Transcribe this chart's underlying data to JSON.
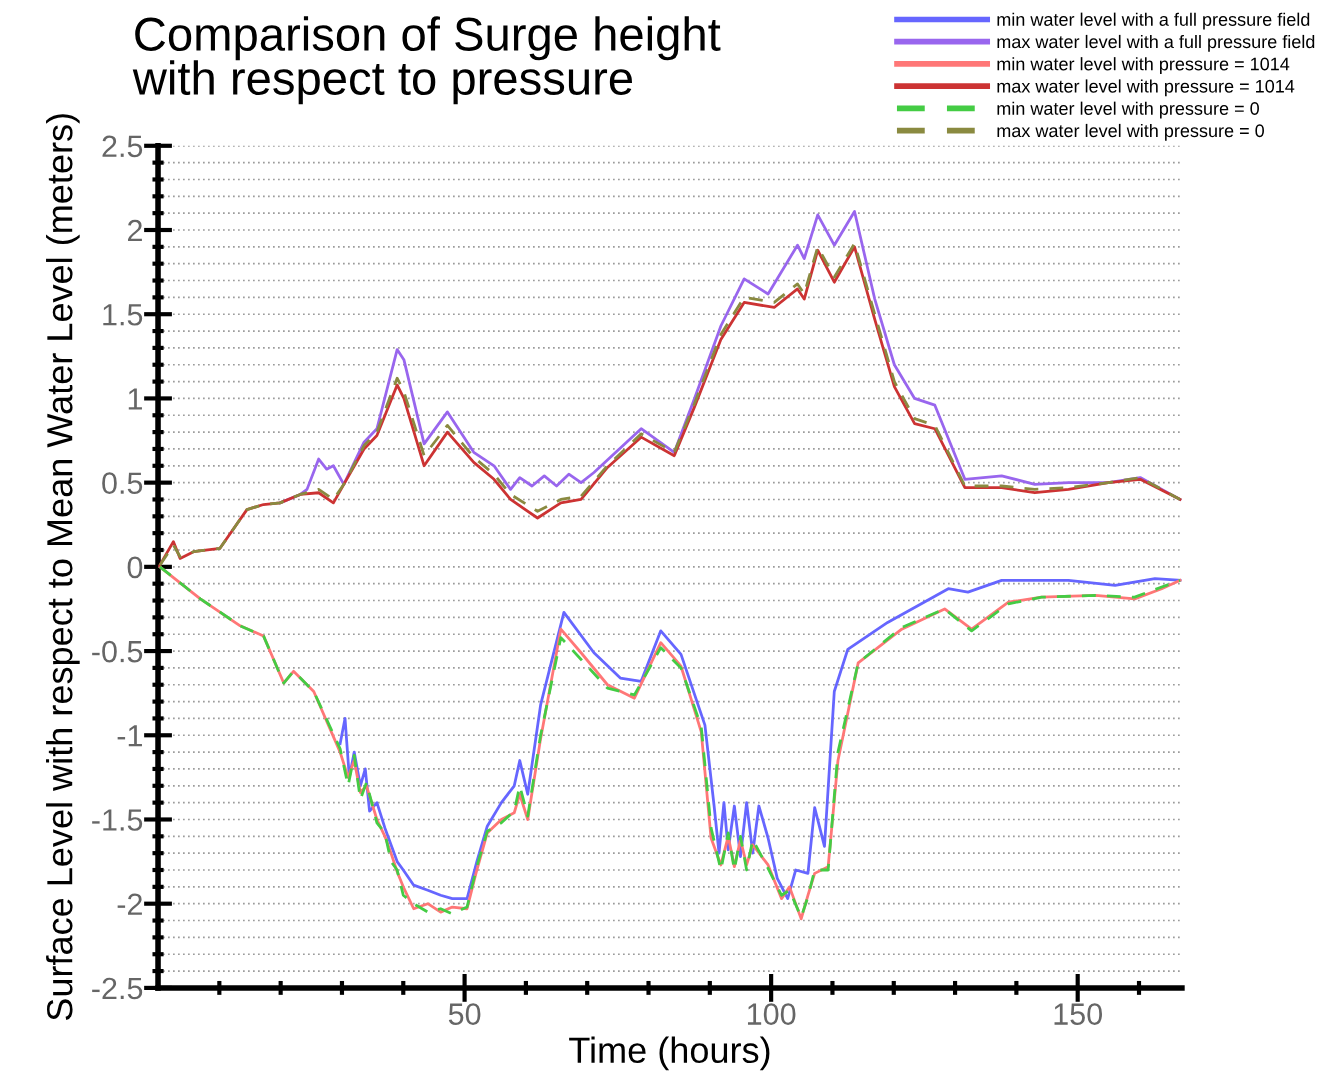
{
  "chart_data": {
    "type": "line",
    "title": "Comparison of Surge height\nwith respect to pressure",
    "xlabel": "Time (hours)",
    "ylabel": "Surface Level with respect to Mean Water Level (meters)",
    "xlim": [
      0,
      167
    ],
    "ylim": [
      -2.5,
      2.5
    ],
    "xticks": [
      {
        "value": 10,
        "label": null
      },
      {
        "value": 20,
        "label": null
      },
      {
        "value": 30,
        "label": null
      },
      {
        "value": 40,
        "label": null
      },
      50,
      {
        "value": 60,
        "label": null
      },
      {
        "value": 70,
        "label": null
      },
      {
        "value": 80,
        "label": null
      },
      {
        "value": 90,
        "label": null
      },
      100,
      {
        "value": 110,
        "label": null
      },
      {
        "value": 120,
        "label": null
      },
      {
        "value": 130,
        "label": null
      },
      {
        "value": 140,
        "label": null
      },
      150,
      {
        "value": 160,
        "label": null
      }
    ],
    "yticks": [
      -2.5,
      {
        "value": -2.4,
        "label": null
      },
      {
        "value": -2.3,
        "label": null
      },
      {
        "value": -2.2,
        "label": null
      },
      {
        "value": -2.1,
        "label": null
      },
      -2,
      {
        "value": -1.9,
        "label": null
      },
      {
        "value": -1.8,
        "label": null
      },
      {
        "value": -1.7,
        "label": null
      },
      {
        "value": -1.6,
        "label": null
      },
      -1.5,
      {
        "value": -1.4,
        "label": null
      },
      {
        "value": -1.3,
        "label": null
      },
      {
        "value": -1.2,
        "label": null
      },
      {
        "value": -1.1,
        "label": null
      },
      -1,
      {
        "value": -0.9,
        "label": null
      },
      {
        "value": -0.8,
        "label": null
      },
      {
        "value": -0.7,
        "label": null
      },
      {
        "value": -0.6,
        "label": null
      },
      -0.5,
      {
        "value": -0.4,
        "label": null
      },
      {
        "value": -0.3,
        "label": null
      },
      {
        "value": -0.2,
        "label": null
      },
      {
        "value": -0.1,
        "label": null
      },
      0,
      {
        "value": 0.1,
        "label": null
      },
      {
        "value": 0.2,
        "label": null
      },
      {
        "value": 0.3,
        "label": null
      },
      {
        "value": 0.4,
        "label": null
      },
      0.5,
      {
        "value": 0.6,
        "label": null
      },
      {
        "value": 0.7,
        "label": null
      },
      {
        "value": 0.8,
        "label": null
      },
      {
        "value": 0.9,
        "label": null
      },
      1,
      {
        "value": 1.1,
        "label": null
      },
      {
        "value": 1.2,
        "label": null
      },
      {
        "value": 1.3,
        "label": null
      },
      {
        "value": 1.4,
        "label": null
      },
      1.5,
      {
        "value": 1.6,
        "label": null
      },
      {
        "value": 1.7,
        "label": null
      },
      {
        "value": 1.8,
        "label": null
      },
      {
        "value": 1.9,
        "label": null
      },
      2,
      {
        "value": 2.1,
        "label": null
      },
      {
        "value": 2.2,
        "label": null
      },
      {
        "value": 2.3,
        "label": null
      },
      {
        "value": 2.4,
        "label": null
      },
      2.5
    ],
    "grid": "y",
    "legend": "top right",
    "marker": "none",
    "series": [
      {
        "name": "min water level with a full pressure field",
        "color": "#6666ff",
        "line_style": "solid",
        "x": [
          29.7,
          30.5,
          31.2,
          32,
          33,
          33.8,
          34.5,
          35.7,
          37,
          38,
          39,
          40,
          41.7,
          44,
          46.1,
          48,
          50.4,
          52,
          53.7,
          56,
          58.1,
          59,
          60.3,
          62.4,
          66.2,
          71.1,
          75.4,
          78.8,
          82,
          85.3,
          89.2,
          90.7,
          91.5,
          92.3,
          93,
          94,
          95,
          96,
          97,
          98,
          99.5,
          101,
          102.7,
          104,
          106,
          107.1,
          108.7,
          110.3,
          112.5,
          119,
          128.9,
          132.1,
          137.6,
          148.5,
          156.1,
          162.6,
          166.7
        ],
        "values": [
          -1.05,
          -0.9,
          -1.25,
          -1.1,
          -1.3,
          -1.2,
          -1.45,
          -1.4,
          -1.55,
          -1.65,
          -1.75,
          -1.8,
          -1.89,
          -1.92,
          -1.95,
          -1.97,
          -1.97,
          -1.75,
          -1.54,
          -1.4,
          -1.3,
          -1.15,
          -1.35,
          -0.82,
          -0.27,
          -0.51,
          -0.66,
          -0.68,
          -0.38,
          -0.52,
          -0.94,
          -1.42,
          -1.7,
          -1.4,
          -1.68,
          -1.42,
          -1.72,
          -1.4,
          -1.7,
          -1.42,
          -1.61,
          -1.85,
          -1.97,
          -1.8,
          -1.82,
          -1.43,
          -1.66,
          -0.74,
          -0.49,
          -0.33,
          -0.13,
          -0.15,
          -0.08,
          -0.08,
          -0.11,
          -0.07,
          -0.08
        ]
      },
      {
        "name": "max water level with a full pressure field",
        "color": "#9966ee",
        "line_style": "solid",
        "x": [
          19.9,
          23.2,
          24.3,
          26.2,
          27.5,
          28.6,
          30.3,
          33.6,
          35.7,
          39,
          40.1,
          43.4,
          47.2,
          51.5,
          54.8,
          57.5,
          59,
          61,
          63,
          65,
          67,
          69,
          71.1,
          78.8,
          84.2,
          87.5,
          91.8,
          95.6,
          99.5,
          104.3,
          105.4,
          107.6,
          110.3,
          113.6,
          116.9,
          120.1,
          123.4,
          126.7,
          131.6,
          137.6,
          143,
          148.5,
          155,
          160.2,
          166.7
        ],
        "values": [
          0.38,
          0.43,
          0.46,
          0.64,
          0.58,
          0.6,
          0.49,
          0.74,
          0.82,
          1.29,
          1.23,
          0.73,
          0.92,
          0.68,
          0.6,
          0.46,
          0.53,
          0.48,
          0.54,
          0.48,
          0.55,
          0.5,
          0.56,
          0.82,
          0.68,
          1.0,
          1.43,
          1.71,
          1.62,
          1.91,
          1.83,
          2.09,
          1.91,
          2.11,
          1.59,
          1.2,
          1.0,
          0.96,
          0.52,
          0.54,
          0.49,
          0.5,
          0.5,
          0.53,
          0.4
        ]
      },
      {
        "name": "min water level with pressure = 1014",
        "color": "#ff7777",
        "line_style": "solid",
        "x": [
          0.3,
          6.9,
          13.4,
          17.2,
          20.5,
          22.1,
          25.4,
          29.7,
          31,
          32,
          33,
          34,
          35.7,
          37,
          38,
          39,
          40,
          41.7,
          44,
          46.1,
          48,
          50.4,
          52,
          53.7,
          56,
          58.1,
          59,
          60.3,
          62.4,
          65.7,
          69,
          73.3,
          77.7,
          82,
          85.3,
          88.6,
          90.2,
          91.8,
          93,
          94,
          95,
          96,
          97,
          99.5,
          101.7,
          103,
          104.9,
          106,
          107.1,
          109.3,
          110.9,
          114.2,
          121.3,
          128.3,
          132.7,
          138.7,
          144.1,
          152.9,
          159.3,
          163.7,
          166.7
        ],
        "values": [
          0,
          -0.19,
          -0.35,
          -0.41,
          -0.69,
          -0.62,
          -0.74,
          -1.1,
          -1.25,
          -1.15,
          -1.34,
          -1.3,
          -1.5,
          -1.6,
          -1.7,
          -1.81,
          -1.9,
          -2.03,
          -2.0,
          -2.05,
          -2.02,
          -2.03,
          -1.8,
          -1.58,
          -1.5,
          -1.46,
          -1.35,
          -1.5,
          -1.02,
          -0.37,
          -0.51,
          -0.7,
          -0.78,
          -0.45,
          -0.59,
          -0.98,
          -1.61,
          -1.77,
          -1.6,
          -1.78,
          -1.62,
          -1.77,
          -1.65,
          -1.77,
          -1.97,
          -1.9,
          -2.09,
          -1.95,
          -1.82,
          -1.78,
          -1.15,
          -0.57,
          -0.37,
          -0.25,
          -0.37,
          -0.21,
          -0.18,
          -0.17,
          -0.19,
          -0.13,
          -0.08
        ]
      },
      {
        "name": "max water level with pressure = 1014",
        "color": "#cc3333",
        "line_style": "solid",
        "x": [
          0.3,
          2.5,
          3.6,
          5.8,
          10.1,
          14.5,
          17.2,
          19.9,
          23.2,
          26.2,
          28.6,
          30.3,
          33.6,
          35.7,
          39,
          40.1,
          43.4,
          47.2,
          51.5,
          54.8,
          57.5,
          61.9,
          65.7,
          69,
          73.3,
          78.8,
          84.2,
          87.5,
          91.8,
          95.6,
          100.5,
          104.3,
          105.4,
          107.6,
          110.3,
          113.6,
          116.9,
          120.1,
          123.4,
          126.7,
          131.6,
          137.6,
          143,
          148.5,
          155,
          160.2,
          166.7
        ],
        "values": [
          0.01,
          0.15,
          0.05,
          0.09,
          0.11,
          0.34,
          0.37,
          0.38,
          0.43,
          0.44,
          0.38,
          0.49,
          0.7,
          0.78,
          1.08,
          1.0,
          0.6,
          0.8,
          0.62,
          0.52,
          0.4,
          0.29,
          0.38,
          0.4,
          0.59,
          0.77,
          0.66,
          0.95,
          1.35,
          1.57,
          1.54,
          1.65,
          1.59,
          1.88,
          1.69,
          1.9,
          1.47,
          1.07,
          0.85,
          0.82,
          0.47,
          0.47,
          0.44,
          0.46,
          0.5,
          0.52,
          0.4
        ]
      },
      {
        "name": "min water level with pressure = 0",
        "color": "#44cc44",
        "line_style": "dashed",
        "x": [
          0.3,
          6.9,
          13.4,
          17.2,
          20.5,
          22.1,
          25.4,
          29.7,
          31,
          32,
          33,
          34,
          35.7,
          37,
          38,
          39,
          40,
          41.7,
          44,
          46.1,
          48,
          50.4,
          52,
          53.7,
          56,
          58.1,
          59,
          60.3,
          62.4,
          65.7,
          69,
          73.3,
          77.7,
          82,
          85.3,
          88.6,
          90.2,
          91.8,
          93,
          94,
          95,
          96,
          97,
          99.5,
          101.7,
          103,
          104.9,
          106,
          107.1,
          109.3,
          110.9,
          114.2,
          121.3,
          128.3,
          132.7,
          138.7,
          144.1,
          152.9,
          159.3,
          163.7,
          166.7
        ],
        "values": [
          0,
          -0.19,
          -0.35,
          -0.41,
          -0.69,
          -0.62,
          -0.74,
          -1.08,
          -1.3,
          -1.12,
          -1.38,
          -1.28,
          -1.52,
          -1.58,
          -1.75,
          -1.8,
          -1.95,
          -2.0,
          -2.05,
          -2.03,
          -2.06,
          -2.02,
          -1.78,
          -1.57,
          -1.52,
          -1.45,
          -1.3,
          -1.48,
          -1.0,
          -0.42,
          -0.55,
          -0.72,
          -0.76,
          -0.48,
          -0.6,
          -0.95,
          -1.55,
          -1.8,
          -1.58,
          -1.8,
          -1.6,
          -1.8,
          -1.62,
          -1.79,
          -1.95,
          -1.92,
          -2.08,
          -1.96,
          -1.8,
          -1.8,
          -1.1,
          -0.57,
          -0.36,
          -0.25,
          -0.38,
          -0.22,
          -0.18,
          -0.17,
          -0.18,
          -0.12,
          -0.08
        ]
      },
      {
        "name": "max water level with pressure = 0",
        "color": "#8a8a40",
        "line_style": "dashed",
        "x": [
          0.3,
          2.5,
          3.6,
          5.8,
          10.1,
          14.5,
          17.2,
          19.9,
          23.2,
          26.2,
          28.6,
          30.3,
          33.6,
          35.7,
          39,
          40.1,
          43.4,
          47.2,
          51.5,
          54.8,
          57.5,
          61.9,
          65.7,
          69,
          73.3,
          78.8,
          84.2,
          87.5,
          91.8,
          95.6,
          100.5,
          104.3,
          105.4,
          107.6,
          110.3,
          113.6,
          116.9,
          120.1,
          123.4,
          126.7,
          131.6,
          137.6,
          143,
          148.5,
          155,
          160.2,
          166.7
        ],
        "values": [
          0.01,
          0.13,
          0.06,
          0.09,
          0.11,
          0.34,
          0.37,
          0.38,
          0.43,
          0.46,
          0.4,
          0.49,
          0.72,
          0.8,
          1.12,
          1.04,
          0.66,
          0.84,
          0.65,
          0.55,
          0.43,
          0.33,
          0.4,
          0.42,
          0.6,
          0.79,
          0.68,
          0.97,
          1.38,
          1.6,
          1.57,
          1.68,
          1.62,
          1.9,
          1.72,
          1.92,
          1.5,
          1.1,
          0.88,
          0.84,
          0.48,
          0.48,
          0.46,
          0.47,
          0.5,
          0.53,
          0.4
        ]
      }
    ]
  }
}
